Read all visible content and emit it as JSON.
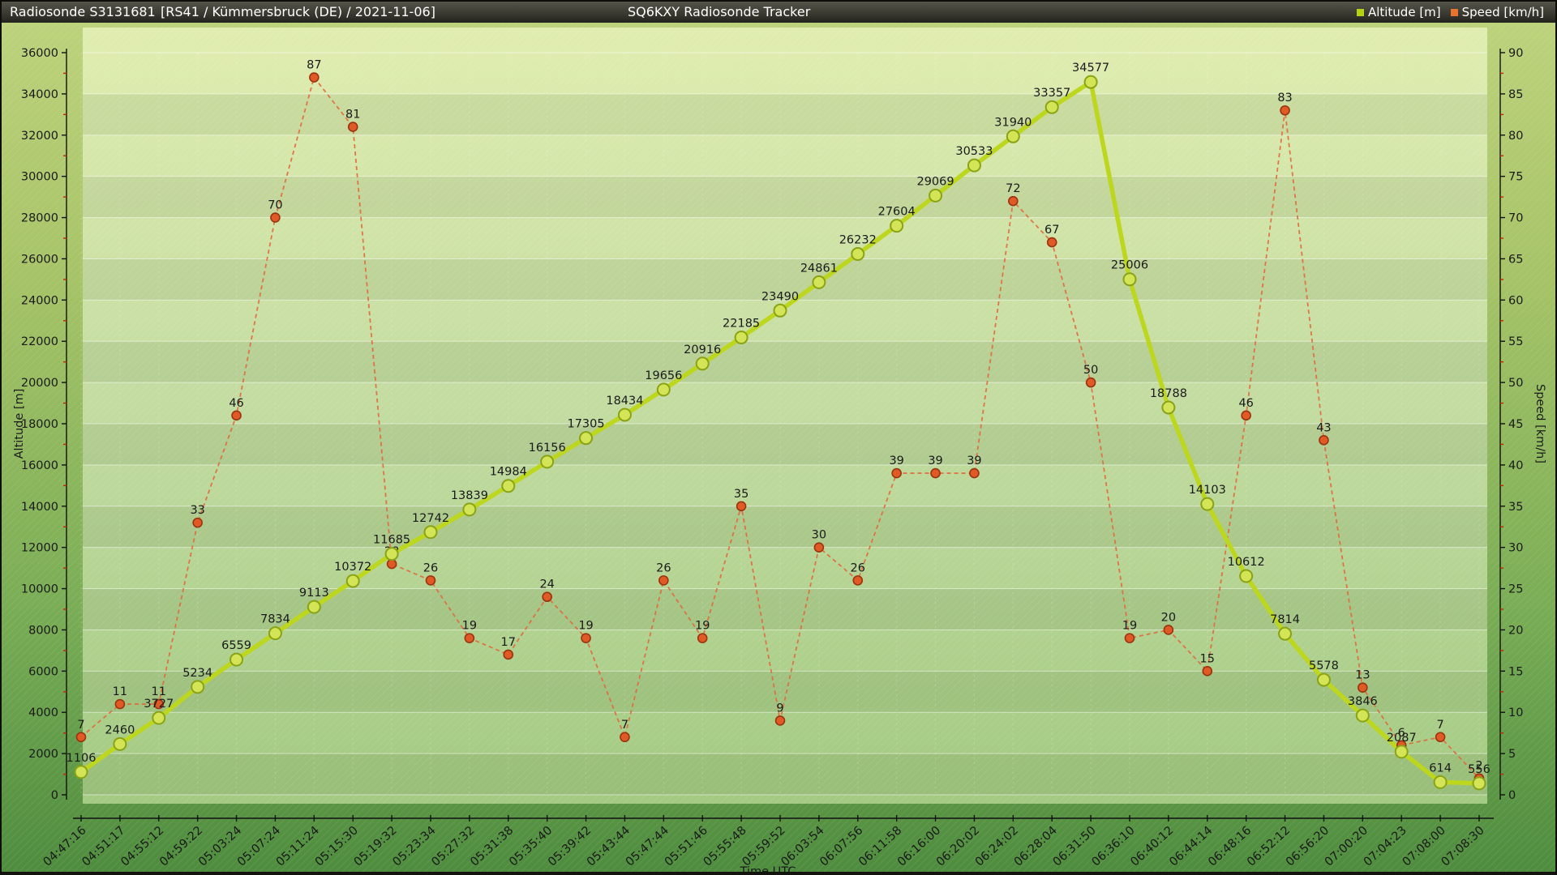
{
  "header": {
    "station": "Radiosonde S3131681",
    "details": "[RS41 / Kümmersbruck (DE) / 2021-11-06]",
    "app_title": "SQ6KXY Radiosonde Tracker",
    "legend": [
      {
        "label": "Altitude [m]",
        "color": "#b6d215"
      },
      {
        "label": "Speed [km/h]",
        "color": "#e8732e"
      }
    ]
  },
  "chart_data": {
    "type": "line",
    "xlabel": "Time UTC",
    "x": [
      "04:47:16",
      "04:51:17",
      "04:55:12",
      "04:59:22",
      "05:03:24",
      "05:07:24",
      "05:11:24",
      "05:15:30",
      "05:19:32",
      "05:23:34",
      "05:27:32",
      "05:31:38",
      "05:35:40",
      "05:39:42",
      "05:43:44",
      "05:47:44",
      "05:51:46",
      "05:55:48",
      "05:59:52",
      "06:03:54",
      "06:07:56",
      "06:11:58",
      "06:16:00",
      "06:20:02",
      "06:24:02",
      "06:28:04",
      "06:31:50",
      "06:36:10",
      "06:40:12",
      "06:44:14",
      "06:48:16",
      "06:52:12",
      "06:56:20",
      "07:00:20",
      "07:04:23",
      "07:08:00",
      "07:08:30"
    ],
    "series": [
      {
        "name": "Altitude [m]",
        "axis": "left",
        "color": "#bdd61e",
        "marker_fill": "#d3e556",
        "marker_stroke": "#8aa315",
        "values": [
          1106,
          2460,
          3727,
          5234,
          6559,
          7834,
          9113,
          10372,
          11685,
          12742,
          13839,
          14984,
          16156,
          17305,
          18434,
          19656,
          20916,
          22185,
          23490,
          24861,
          26232,
          27604,
          29069,
          30533,
          31940,
          33357,
          34577,
          25006,
          18788,
          14103,
          10612,
          7814,
          5578,
          3846,
          2087,
          614,
          556
        ]
      },
      {
        "name": "Speed [km/h]",
        "axis": "right",
        "color": "#e06a3c",
        "marker_fill": "#e05a26",
        "marker_stroke": "#9a3310",
        "values": [
          7,
          11,
          11,
          33,
          46,
          70,
          87,
          81,
          28,
          26,
          19,
          17,
          24,
          19,
          7,
          26,
          19,
          35,
          9,
          30,
          26,
          39,
          39,
          39,
          72,
          67,
          50,
          19,
          20,
          15,
          46,
          83,
          43,
          13,
          6,
          7,
          2
        ]
      }
    ],
    "left_axis": {
      "title": "Altitude [m]",
      "min": 0,
      "max": 36000,
      "major": 2000,
      "minor": 1000
    },
    "right_axis": {
      "title": "Speed [km/h]",
      "min": 0,
      "max": 90,
      "major": 5,
      "minor": 2.5
    },
    "grid": true,
    "legend_position": "top-right"
  }
}
